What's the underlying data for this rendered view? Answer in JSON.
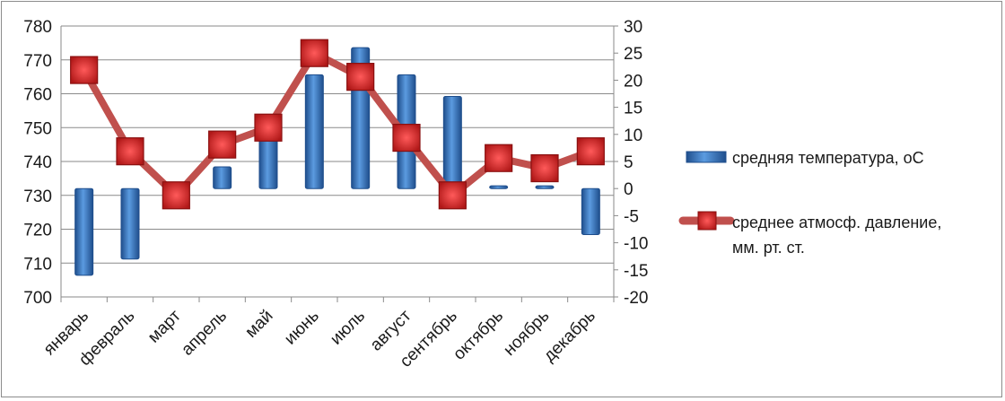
{
  "chart_data": {
    "type": "bar+line",
    "categories": [
      "январь",
      "февраль",
      "март",
      "апрель",
      "май",
      "июнь",
      "июль",
      "август",
      "сентябрь",
      "октябрь",
      "ноябрь",
      "декабрь"
    ],
    "series": [
      {
        "name": "средняя температура, оС",
        "type": "bar",
        "axis": "right",
        "color": "#3f7fc7",
        "values": [
          -16,
          -13,
          -0.5,
          4,
          9,
          21,
          26,
          21,
          17,
          0.5,
          0.5,
          -8.5
        ]
      },
      {
        "name": "среднее атмосф. давление, мм. рт. ст.",
        "type": "line",
        "axis": "left",
        "color": "#c0504d",
        "values": [
          767,
          743,
          730,
          745,
          750,
          772,
          765,
          747,
          730,
          741,
          738,
          743
        ]
      }
    ],
    "y_left": {
      "min": 700,
      "max": 780,
      "step": 10,
      "ticks": [
        "700",
        "710",
        "720",
        "730",
        "740",
        "750",
        "760",
        "770",
        "780"
      ]
    },
    "y_right": {
      "min": -20,
      "max": 30,
      "step": 5,
      "ticks": [
        "-20",
        "-15",
        "-10",
        "-5",
        "0",
        "5",
        "10",
        "15",
        "20",
        "25",
        "30"
      ]
    },
    "grid": true,
    "legend_position": "right",
    "legend": {
      "bar_label": "средняя температура, оС",
      "line_label_line1": "среднее атмосф. давление,",
      "line_label_line2": "мм. рт. ст."
    }
  }
}
